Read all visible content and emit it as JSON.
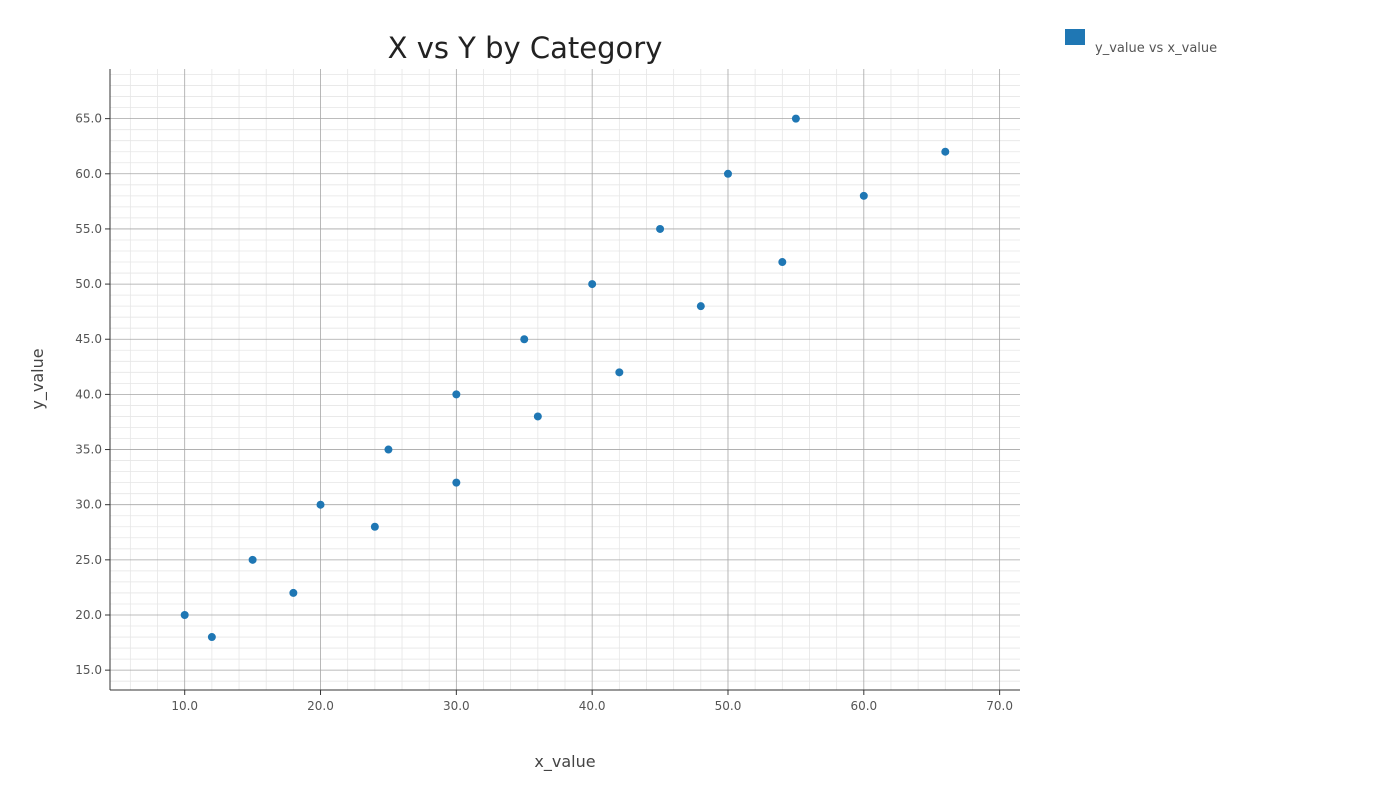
{
  "chart_data": {
    "type": "scatter",
    "title": "X vs Y by Category",
    "xlabel": "x_value",
    "ylabel": "y_value",
    "xlim": [
      4.5,
      71.5
    ],
    "ylim": [
      13.2,
      69.5
    ],
    "xticks": [
      10,
      20,
      30,
      40,
      50,
      60,
      70
    ],
    "xtick_labels": [
      "10.0",
      "20.0",
      "30.0",
      "40.0",
      "50.0",
      "60.0",
      "70.0"
    ],
    "yticks": [
      15,
      20,
      25,
      30,
      35,
      40,
      45,
      50,
      55,
      60,
      65
    ],
    "ytick_labels": [
      "15.0",
      "20.0",
      "25.0",
      "30.0",
      "35.0",
      "40.0",
      "45.0",
      "50.0",
      "55.0",
      "60.0",
      "65.0"
    ],
    "grid": true,
    "legend_position": "top-right outside",
    "series": [
      {
        "name": "y_value vs x_value",
        "color": "#1f77b4",
        "points": [
          {
            "x": 10,
            "y": 20
          },
          {
            "x": 12,
            "y": 18
          },
          {
            "x": 15,
            "y": 25
          },
          {
            "x": 18,
            "y": 22
          },
          {
            "x": 20,
            "y": 30
          },
          {
            "x": 24,
            "y": 28
          },
          {
            "x": 25,
            "y": 35
          },
          {
            "x": 30,
            "y": 40
          },
          {
            "x": 30,
            "y": 32
          },
          {
            "x": 35,
            "y": 45
          },
          {
            "x": 36,
            "y": 38
          },
          {
            "x": 40,
            "y": 50
          },
          {
            "x": 42,
            "y": 42
          },
          {
            "x": 45,
            "y": 55
          },
          {
            "x": 48,
            "y": 48
          },
          {
            "x": 50,
            "y": 60
          },
          {
            "x": 54,
            "y": 52
          },
          {
            "x": 55,
            "y": 65
          },
          {
            "x": 60,
            "y": 58
          },
          {
            "x": 66,
            "y": 62
          }
        ]
      }
    ]
  }
}
